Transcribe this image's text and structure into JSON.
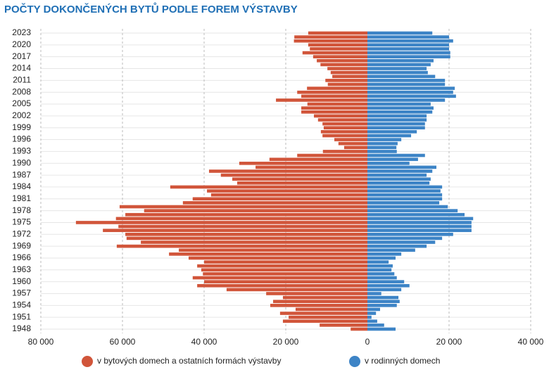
{
  "chart_data": {
    "type": "bar",
    "orientation": "horizontal",
    "title": "POČTY DOKONČENÝCH BYTŮ PODLE FOREM VÝSTAVBY",
    "categories": [
      "2023",
      null,
      null,
      "2020",
      null,
      null,
      "2017",
      null,
      null,
      "2014",
      null,
      null,
      "2011",
      null,
      null,
      "2008",
      null,
      null,
      "2005",
      null,
      null,
      "2002",
      null,
      null,
      "1999",
      null,
      null,
      "1996",
      null,
      null,
      "1993",
      null,
      null,
      "1990",
      null,
      null,
      "1987",
      null,
      null,
      "1984",
      null,
      null,
      "1981",
      null,
      null,
      "1978",
      null,
      null,
      "1975",
      null,
      null,
      "1972",
      null,
      null,
      "1969",
      null,
      null,
      "1966",
      null,
      null,
      "1963",
      null,
      null,
      "1960",
      null,
      null,
      "1957",
      null,
      null,
      "1954",
      null,
      null,
      "1951",
      null,
      null,
      "1948"
    ],
    "series": [
      {
        "name": "v bytových domech a ostatních formách výstavby",
        "color": "#d1553a",
        "values": [
          -14500,
          -17900,
          -18000,
          -14500,
          -14100,
          -15900,
          -13300,
          -12400,
          -11500,
          -9800,
          -9000,
          -8600,
          -10300,
          -9700,
          -14800,
          -17200,
          -16200,
          -22400,
          -14700,
          -16200,
          -16200,
          -13100,
          -12100,
          -11000,
          -10700,
          -11400,
          -11000,
          -8100,
          -7100,
          -5700,
          -10900,
          -17200,
          -24000,
          -31400,
          -27400,
          -38800,
          -35900,
          -33100,
          -31900,
          -48300,
          -39300,
          -38300,
          -42800,
          -45200,
          -60700,
          -54700,
          -59300,
          -61600,
          -71400,
          -61000,
          -64800,
          -59300,
          -59000,
          -55500,
          -61400,
          -46200,
          -48600,
          -43800,
          -40000,
          -41700,
          -40700,
          -40300,
          -42800,
          -40000,
          -41700,
          -34500,
          -24800,
          -20700,
          -23100,
          -23800,
          -17600,
          -21400,
          -19300,
          -20700,
          -11700,
          -4100
        ]
      },
      {
        "name": "v rodinných domech",
        "color": "#3d84c6",
        "values": [
          15900,
          20000,
          21000,
          20000,
          20000,
          20300,
          20300,
          16200,
          15500,
          14500,
          14800,
          16600,
          19000,
          19000,
          21400,
          21000,
          21700,
          19000,
          15500,
          16200,
          15900,
          14500,
          14500,
          14100,
          14100,
          12100,
          10700,
          8300,
          7400,
          7100,
          7200,
          14100,
          12400,
          10300,
          16900,
          15900,
          14500,
          15500,
          15200,
          18300,
          17900,
          18300,
          18300,
          17600,
          19700,
          22100,
          23800,
          25900,
          25500,
          25500,
          25500,
          21000,
          18300,
          16600,
          14500,
          11700,
          8300,
          6900,
          5200,
          6200,
          5900,
          6600,
          7200,
          9000,
          10300,
          8300,
          3400,
          7600,
          7900,
          7200,
          3100,
          2100,
          1000,
          2400,
          4100,
          6900
        ]
      }
    ],
    "xlim": [
      -80000,
      40000
    ],
    "xticks": [
      {
        "value": -80000,
        "label": "80 000"
      },
      {
        "value": -60000,
        "label": "60 000"
      },
      {
        "value": -40000,
        "label": "40 000"
      },
      {
        "value": -20000,
        "label": "20 000"
      },
      0,
      {
        "value": 20000,
        "label": "20 000"
      },
      {
        "value": 40000,
        "label": "40 000"
      }
    ],
    "grid": true,
    "legend": "bottom"
  }
}
